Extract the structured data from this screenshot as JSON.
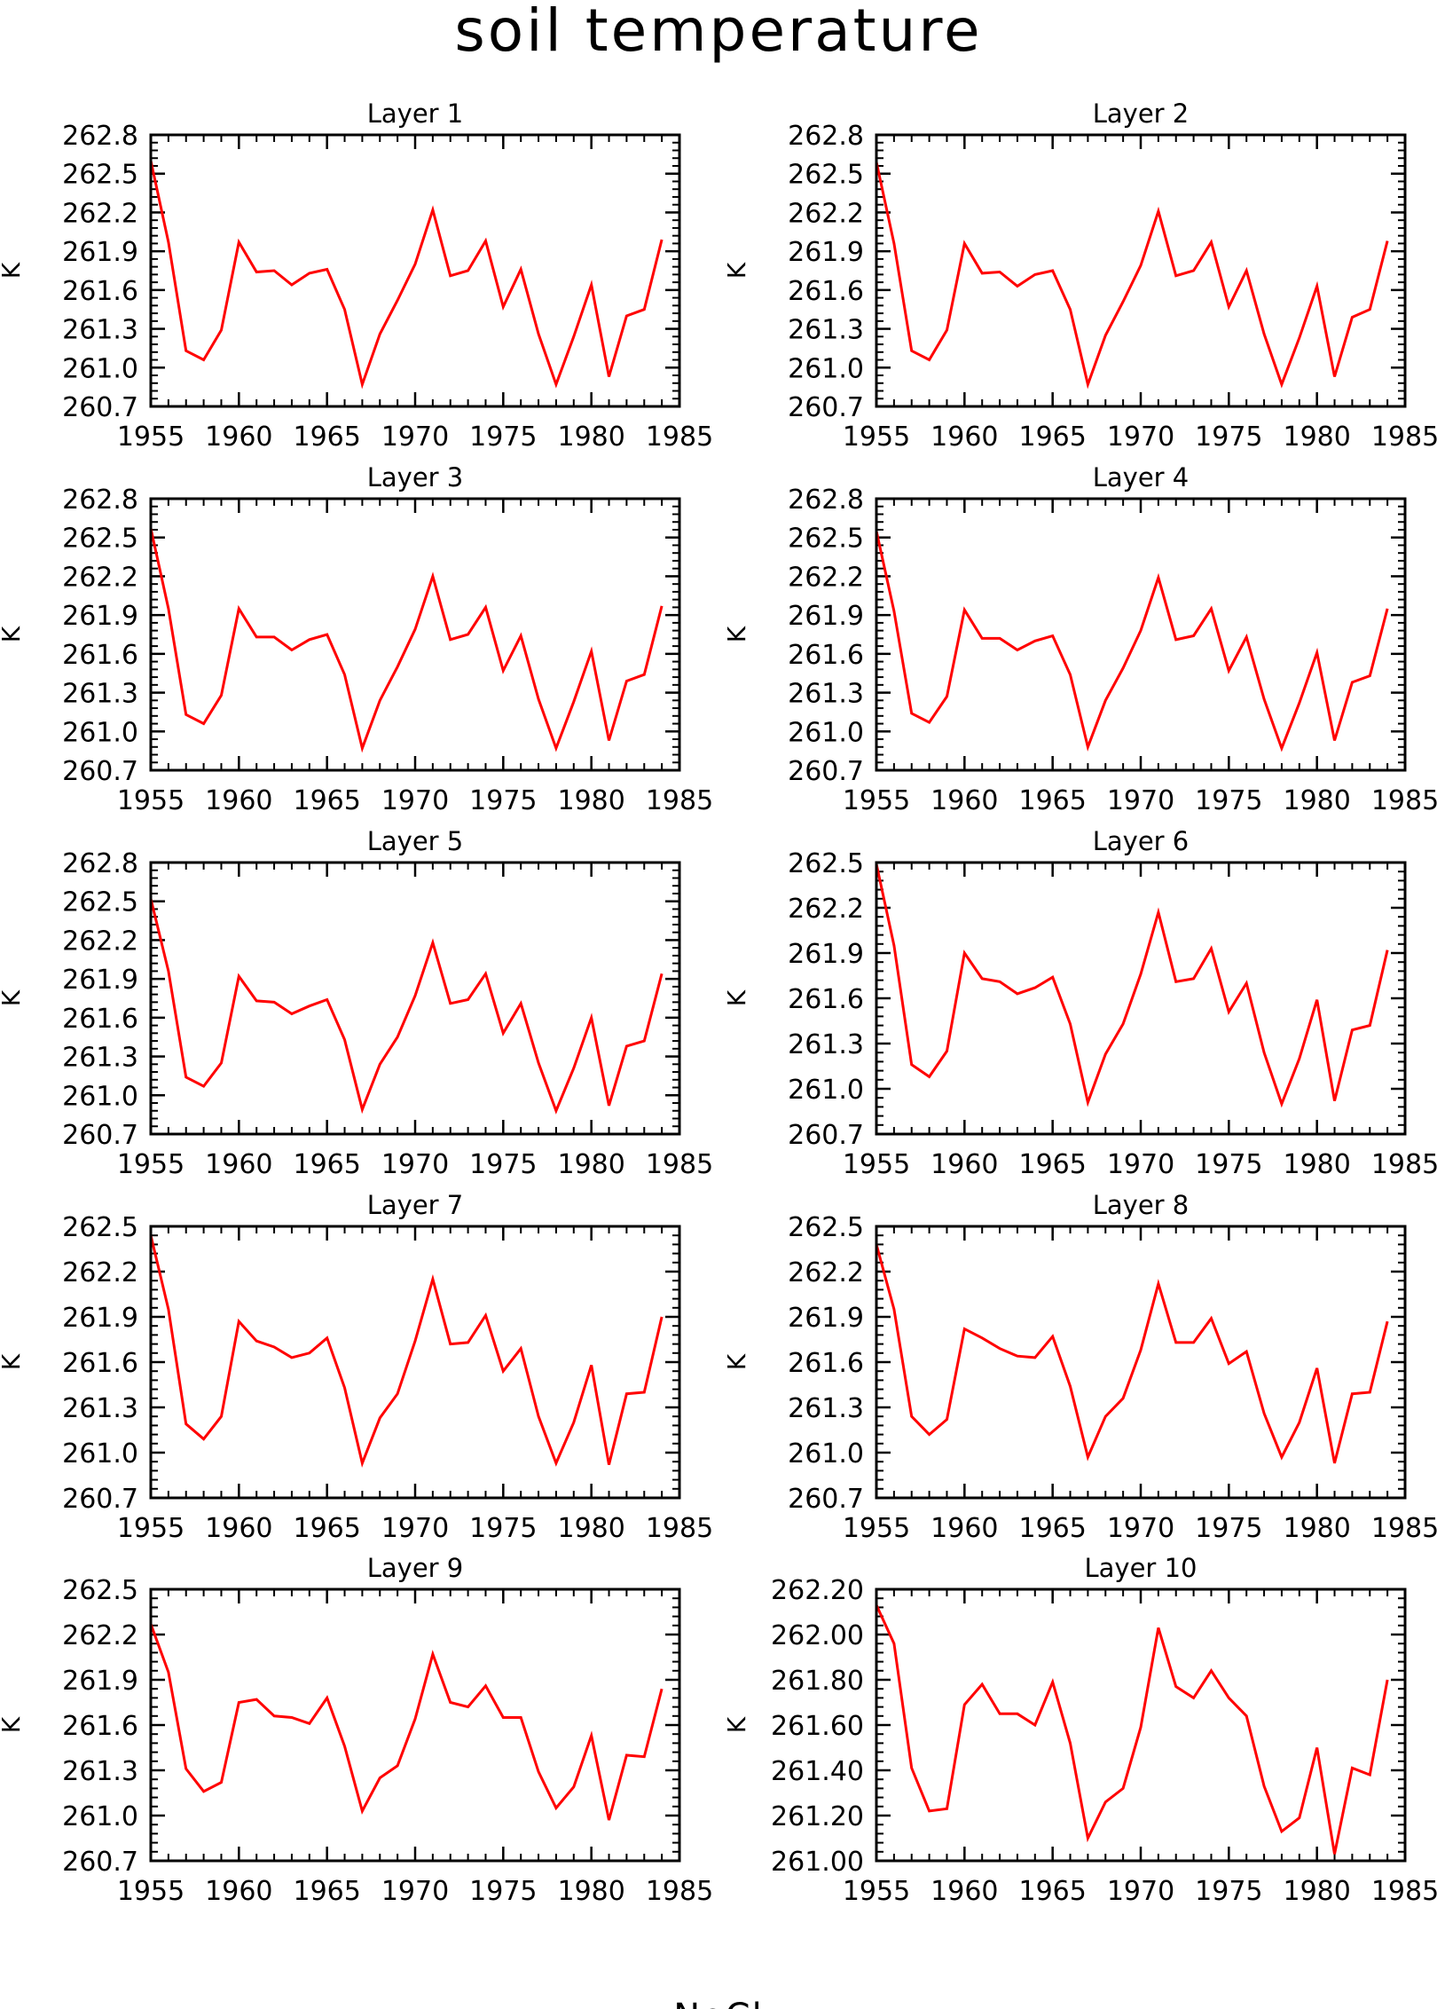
{
  "title": "soil temperature",
  "footer": "NoCl",
  "line_color": "#ff0000",
  "chart_data": [
    {
      "type": "line",
      "title": "Layer 1",
      "ylabel": "K",
      "xlim": [
        1955,
        1985
      ],
      "ylim": [
        260.7,
        262.8
      ],
      "xticks": [
        1955,
        1960,
        1965,
        1970,
        1975,
        1980,
        1985
      ],
      "yticks": [
        "262.8",
        "262.5",
        "262.2",
        "261.9",
        "261.6",
        "261.3",
        "261.0",
        "260.7"
      ],
      "x": [
        1955,
        1956,
        1957,
        1958,
        1959,
        1960,
        1961,
        1962,
        1963,
        1964,
        1965,
        1966,
        1967,
        1968,
        1969,
        1970,
        1971,
        1972,
        1973,
        1974,
        1975,
        1976,
        1977,
        1978,
        1979,
        1980,
        1981,
        1982,
        1983,
        1984
      ],
      "y": [
        262.6,
        261.97,
        261.13,
        261.06,
        261.29,
        261.97,
        261.74,
        261.75,
        261.64,
        261.73,
        261.76,
        261.45,
        260.87,
        261.26,
        261.52,
        261.8,
        262.22,
        261.71,
        261.75,
        261.98,
        261.47,
        261.76,
        261.26,
        260.87,
        261.24,
        261.64,
        260.93,
        261.4,
        261.45,
        261.99
      ]
    },
    {
      "type": "line",
      "title": "Layer 2",
      "ylabel": "K",
      "xlim": [
        1955,
        1985
      ],
      "ylim": [
        260.7,
        262.8
      ],
      "xticks": [
        1955,
        1960,
        1965,
        1970,
        1975,
        1980,
        1985
      ],
      "yticks": [
        "262.8",
        "262.5",
        "262.2",
        "261.9",
        "261.6",
        "261.3",
        "261.0",
        "260.7"
      ],
      "x": [
        1955,
        1956,
        1957,
        1958,
        1959,
        1960,
        1961,
        1962,
        1963,
        1964,
        1965,
        1966,
        1967,
        1968,
        1969,
        1970,
        1971,
        1972,
        1973,
        1974,
        1975,
        1976,
        1977,
        1978,
        1979,
        1980,
        1981,
        1982,
        1983,
        1984
      ],
      "y": [
        262.59,
        261.96,
        261.13,
        261.06,
        261.29,
        261.96,
        261.73,
        261.74,
        261.63,
        261.72,
        261.75,
        261.45,
        260.87,
        261.25,
        261.51,
        261.79,
        262.21,
        261.71,
        261.75,
        261.97,
        261.47,
        261.75,
        261.26,
        260.87,
        261.23,
        261.63,
        260.93,
        261.39,
        261.45,
        261.98
      ]
    },
    {
      "type": "line",
      "title": "Layer 3",
      "ylabel": "K",
      "xlim": [
        1955,
        1985
      ],
      "ylim": [
        260.7,
        262.8
      ],
      "xticks": [
        1955,
        1960,
        1965,
        1970,
        1975,
        1980,
        1985
      ],
      "yticks": [
        "262.8",
        "262.5",
        "262.2",
        "261.9",
        "261.6",
        "261.3",
        "261.0",
        "260.7"
      ],
      "x": [
        1955,
        1956,
        1957,
        1958,
        1959,
        1960,
        1961,
        1962,
        1963,
        1964,
        1965,
        1966,
        1967,
        1968,
        1969,
        1970,
        1971,
        1972,
        1973,
        1974,
        1975,
        1976,
        1977,
        1978,
        1979,
        1980,
        1981,
        1982,
        1983,
        1984
      ],
      "y": [
        262.57,
        261.95,
        261.13,
        261.06,
        261.28,
        261.95,
        261.73,
        261.73,
        261.63,
        261.71,
        261.75,
        261.44,
        260.87,
        261.24,
        261.5,
        261.79,
        262.2,
        261.71,
        261.75,
        261.96,
        261.47,
        261.74,
        261.25,
        260.87,
        261.23,
        261.62,
        260.93,
        261.39,
        261.44,
        261.97
      ]
    },
    {
      "type": "line",
      "title": "Layer 4",
      "ylabel": "K",
      "xlim": [
        1955,
        1985
      ],
      "ylim": [
        260.7,
        262.8
      ],
      "xticks": [
        1955,
        1960,
        1965,
        1970,
        1975,
        1980,
        1985
      ],
      "yticks": [
        "262.8",
        "262.5",
        "262.2",
        "261.9",
        "261.6",
        "261.3",
        "261.0",
        "260.7"
      ],
      "x": [
        1955,
        1956,
        1957,
        1958,
        1959,
        1960,
        1961,
        1962,
        1963,
        1964,
        1965,
        1966,
        1967,
        1968,
        1969,
        1970,
        1971,
        1972,
        1973,
        1974,
        1975,
        1976,
        1977,
        1978,
        1979,
        1980,
        1981,
        1982,
        1983,
        1984
      ],
      "y": [
        262.55,
        261.93,
        261.14,
        261.07,
        261.27,
        261.94,
        261.72,
        261.72,
        261.63,
        261.7,
        261.74,
        261.44,
        260.88,
        261.24,
        261.49,
        261.78,
        262.19,
        261.71,
        261.74,
        261.95,
        261.47,
        261.73,
        261.25,
        260.87,
        261.22,
        261.61,
        260.93,
        261.38,
        261.43,
        261.95
      ]
    },
    {
      "type": "line",
      "title": "Layer 5",
      "ylabel": "K",
      "xlim": [
        1955,
        1985
      ],
      "ylim": [
        260.7,
        262.8
      ],
      "xticks": [
        1955,
        1960,
        1965,
        1970,
        1975,
        1980,
        1985
      ],
      "yticks": [
        "262.8",
        "262.5",
        "262.2",
        "261.9",
        "261.6",
        "261.3",
        "261.0",
        "260.7"
      ],
      "x": [
        1955,
        1956,
        1957,
        1958,
        1959,
        1960,
        1961,
        1962,
        1963,
        1964,
        1965,
        1966,
        1967,
        1968,
        1969,
        1970,
        1971,
        1972,
        1973,
        1974,
        1975,
        1976,
        1977,
        1978,
        1979,
        1980,
        1981,
        1982,
        1983,
        1984
      ],
      "y": [
        262.52,
        261.96,
        261.14,
        261.07,
        261.25,
        261.92,
        261.73,
        261.72,
        261.63,
        261.69,
        261.74,
        261.43,
        260.89,
        261.24,
        261.45,
        261.77,
        262.18,
        261.71,
        261.74,
        261.94,
        261.48,
        261.71,
        261.25,
        260.88,
        261.21,
        261.6,
        260.92,
        261.38,
        261.42,
        261.94
      ]
    },
    {
      "type": "line",
      "title": "Layer 6",
      "ylabel": "K",
      "xlim": [
        1955,
        1985
      ],
      "ylim": [
        260.7,
        262.5
      ],
      "xticks": [
        1955,
        1960,
        1965,
        1970,
        1975,
        1980,
        1985
      ],
      "yticks": [
        "262.5",
        "262.2",
        "261.9",
        "261.6",
        "261.3",
        "261.0",
        "260.7"
      ],
      "x": [
        1955,
        1956,
        1957,
        1958,
        1959,
        1960,
        1961,
        1962,
        1963,
        1964,
        1965,
        1966,
        1967,
        1968,
        1969,
        1970,
        1971,
        1972,
        1973,
        1974,
        1975,
        1976,
        1977,
        1978,
        1979,
        1980,
        1981,
        1982,
        1983,
        1984
      ],
      "y": [
        262.49,
        261.95,
        261.16,
        261.08,
        261.25,
        261.9,
        261.73,
        261.71,
        261.63,
        261.67,
        261.74,
        261.43,
        260.91,
        261.23,
        261.43,
        261.76,
        262.17,
        261.71,
        261.73,
        261.93,
        261.51,
        261.7,
        261.24,
        260.9,
        261.2,
        261.59,
        260.92,
        261.39,
        261.42,
        261.92
      ]
    },
    {
      "type": "line",
      "title": "Layer 7",
      "ylabel": "K",
      "xlim": [
        1955,
        1985
      ],
      "ylim": [
        260.7,
        262.5
      ],
      "xticks": [
        1955,
        1960,
        1965,
        1970,
        1975,
        1980,
        1985
      ],
      "yticks": [
        "262.5",
        "262.2",
        "261.9",
        "261.6",
        "261.3",
        "261.0",
        "260.7"
      ],
      "x": [
        1955,
        1956,
        1957,
        1958,
        1959,
        1960,
        1961,
        1962,
        1963,
        1964,
        1965,
        1966,
        1967,
        1968,
        1969,
        1970,
        1971,
        1972,
        1973,
        1974,
        1975,
        1976,
        1977,
        1978,
        1979,
        1980,
        1981,
        1982,
        1983,
        1984
      ],
      "y": [
        262.44,
        261.95,
        261.19,
        261.09,
        261.24,
        261.87,
        261.74,
        261.7,
        261.63,
        261.66,
        261.76,
        261.43,
        260.93,
        261.23,
        261.39,
        261.74,
        262.15,
        261.72,
        261.73,
        261.91,
        261.54,
        261.69,
        261.24,
        260.93,
        261.2,
        261.58,
        260.92,
        261.39,
        261.4,
        261.9
      ]
    },
    {
      "type": "line",
      "title": "Layer 8",
      "ylabel": "K",
      "xlim": [
        1955,
        1985
      ],
      "ylim": [
        260.7,
        262.5
      ],
      "xticks": [
        1955,
        1960,
        1965,
        1970,
        1975,
        1980,
        1985
      ],
      "yticks": [
        "262.5",
        "262.2",
        "261.9",
        "261.6",
        "261.3",
        "261.0",
        "260.7"
      ],
      "x": [
        1955,
        1956,
        1957,
        1958,
        1959,
        1960,
        1961,
        1962,
        1963,
        1964,
        1965,
        1966,
        1967,
        1968,
        1969,
        1970,
        1971,
        1972,
        1973,
        1974,
        1975,
        1976,
        1977,
        1978,
        1979,
        1980,
        1981,
        1982,
        1983,
        1984
      ],
      "y": [
        262.38,
        261.95,
        261.24,
        261.12,
        261.22,
        261.82,
        261.76,
        261.69,
        261.64,
        261.63,
        261.77,
        261.44,
        260.97,
        261.24,
        261.36,
        261.68,
        262.12,
        261.73,
        261.73,
        261.89,
        261.59,
        261.67,
        261.26,
        260.97,
        261.2,
        261.56,
        260.93,
        261.39,
        261.4,
        261.87
      ]
    },
    {
      "type": "line",
      "title": "Layer 9",
      "ylabel": "K",
      "xlim": [
        1955,
        1985
      ],
      "ylim": [
        260.7,
        262.5
      ],
      "xticks": [
        1955,
        1960,
        1965,
        1970,
        1975,
        1980,
        1985
      ],
      "yticks": [
        "262.5",
        "262.2",
        "261.9",
        "261.6",
        "261.3",
        "261.0",
        "260.7"
      ],
      "x": [
        1955,
        1956,
        1957,
        1958,
        1959,
        1960,
        1961,
        1962,
        1963,
        1964,
        1965,
        1966,
        1967,
        1968,
        1969,
        1970,
        1971,
        1972,
        1973,
        1974,
        1975,
        1976,
        1977,
        1978,
        1979,
        1980,
        1981,
        1982,
        1983,
        1984
      ],
      "y": [
        262.27,
        261.95,
        261.31,
        261.16,
        261.22,
        261.75,
        261.77,
        261.66,
        261.65,
        261.61,
        261.78,
        261.46,
        261.03,
        261.25,
        261.33,
        261.64,
        262.07,
        261.75,
        261.72,
        261.86,
        261.65,
        261.65,
        261.29,
        261.05,
        261.19,
        261.53,
        260.97,
        261.4,
        261.39,
        261.84
      ]
    },
    {
      "type": "line",
      "title": "Layer 10",
      "ylabel": "K",
      "xlim": [
        1955,
        1985
      ],
      "ylim": [
        261.0,
        262.2
      ],
      "xticks": [
        1955,
        1960,
        1965,
        1970,
        1975,
        1980,
        1985
      ],
      "yticks": [
        "262.20",
        "262.00",
        "261.80",
        "261.60",
        "261.40",
        "261.20",
        "261.00"
      ],
      "x": [
        1955,
        1956,
        1957,
        1958,
        1959,
        1960,
        1961,
        1962,
        1963,
        1964,
        1965,
        1966,
        1967,
        1968,
        1969,
        1970,
        1971,
        1972,
        1973,
        1974,
        1975,
        1976,
        1977,
        1978,
        1979,
        1980,
        1981,
        1982,
        1983,
        1984
      ],
      "y": [
        262.13,
        261.96,
        261.41,
        261.22,
        261.23,
        261.69,
        261.78,
        261.65,
        261.65,
        261.6,
        261.79,
        261.52,
        261.1,
        261.26,
        261.32,
        261.59,
        262.03,
        261.77,
        261.72,
        261.84,
        261.72,
        261.64,
        261.33,
        261.13,
        261.19,
        261.5,
        261.03,
        261.41,
        261.38,
        261.8
      ]
    }
  ]
}
